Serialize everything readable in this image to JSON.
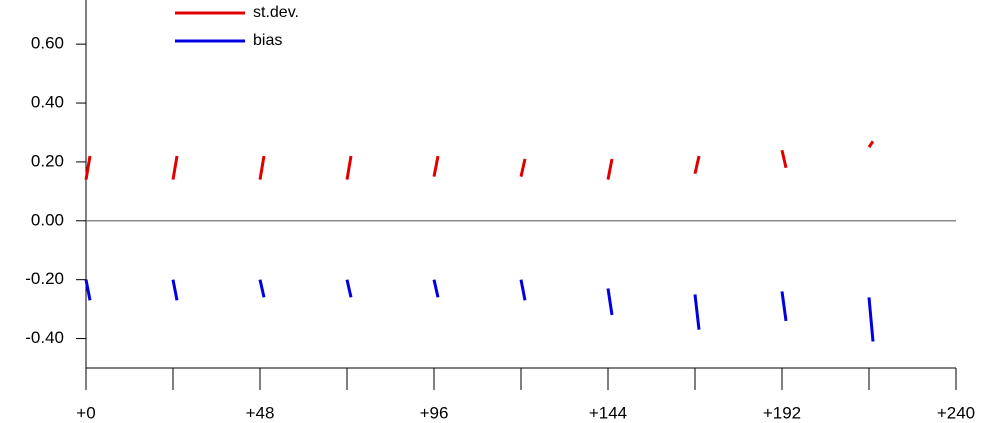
{
  "chart_data": {
    "type": "segment",
    "x": [
      0,
      24,
      48,
      72,
      96,
      120,
      144,
      168,
      192,
      216
    ],
    "series": [
      {
        "name": "st.dev.",
        "color": "#e00000",
        "values": [
          0.14,
          0.14,
          0.14,
          0.14,
          0.15,
          0.15,
          0.14,
          0.16,
          0.24,
          0.25
        ],
        "values_end": [
          0.22,
          0.22,
          0.22,
          0.22,
          0.22,
          0.21,
          0.21,
          0.22,
          0.18,
          0.27
        ]
      },
      {
        "name": "bias",
        "color": "#0000e0",
        "values": [
          -0.2,
          -0.2,
          -0.2,
          -0.2,
          -0.2,
          -0.2,
          -0.23,
          -0.25,
          -0.24,
          -0.26
        ],
        "values_end": [
          -0.27,
          -0.27,
          -0.26,
          -0.26,
          -0.26,
          -0.27,
          -0.32,
          -0.37,
          -0.34,
          -0.41
        ]
      }
    ],
    "xlim": [
      0,
      240
    ],
    "xticks": [
      {
        "value": 0,
        "label": "+0"
      },
      {
        "value": 48,
        "label": "+48"
      },
      {
        "value": 96,
        "label": "+96"
      },
      {
        "value": 144,
        "label": "+144"
      },
      {
        "value": 192,
        "label": "+192"
      },
      {
        "value": 240,
        "label": "+240"
      }
    ],
    "xticks_unlabeled": [
      24,
      72,
      120,
      168,
      216
    ],
    "ylim": [
      -0.5,
      0.75
    ],
    "yticks": [
      {
        "value": -0.4,
        "label": "-0.40"
      },
      {
        "value": -0.2,
        "label": "-0.20"
      },
      {
        "value": 0,
        "label": "0.00"
      },
      {
        "value": 0.2,
        "label": "0.20"
      },
      {
        "value": 0.4,
        "label": "0.40"
      },
      {
        "value": 0.6,
        "label": "0.60"
      }
    ],
    "reference_line": 0,
    "legend": "top-left"
  }
}
